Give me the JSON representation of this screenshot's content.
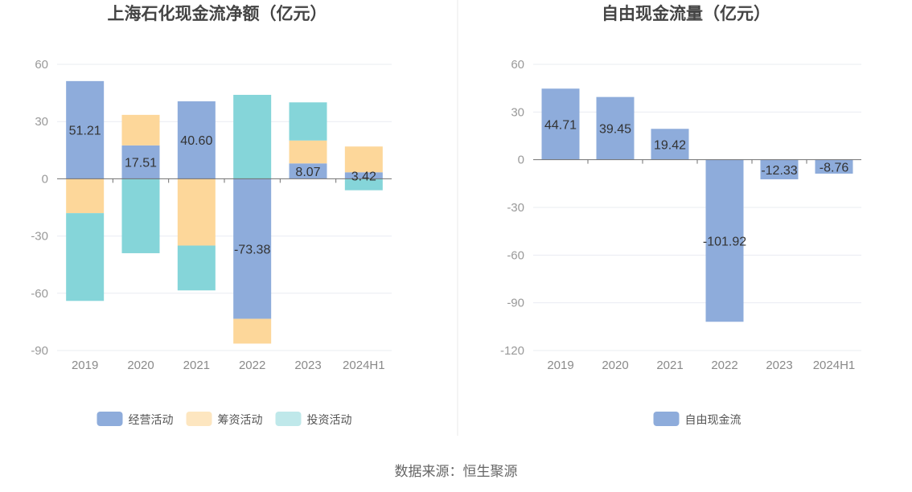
{
  "source": "数据来源：恒生聚源",
  "chart_data": [
    {
      "type": "bar",
      "stacked": true,
      "title": "上海石化现金流净额（亿元）",
      "categories": [
        "2019",
        "2020",
        "2021",
        "2022",
        "2023",
        "2024H1"
      ],
      "ylim": [
        -90,
        60
      ],
      "yticks": [
        60,
        30,
        0,
        -30,
        -60,
        -90
      ],
      "grid": true,
      "legend_position": "bottom",
      "series": [
        {
          "name": "经营活动",
          "color": "#8eacdb",
          "values": [
            51.21,
            17.51,
            40.6,
            -73.38,
            8.07,
            3.42
          ],
          "labels": [
            "51.21",
            "17.51",
            "40.60",
            "-73.38",
            "8.07",
            "3.42"
          ]
        },
        {
          "name": "筹资活动",
          "color": "#fdd79a",
          "values": [
            -18.0,
            16.0,
            -35.0,
            -13.0,
            12.0,
            13.5
          ]
        },
        {
          "name": "投资活动",
          "color": "#85d5d9",
          "values": [
            -46.0,
            -39.0,
            -23.5,
            44.0,
            20.0,
            -6.0
          ]
        }
      ]
    },
    {
      "type": "bar",
      "title": "自由现金流量（亿元）",
      "categories": [
        "2019",
        "2020",
        "2021",
        "2022",
        "2023",
        "2024H1"
      ],
      "ylim": [
        -120,
        60
      ],
      "yticks": [
        60,
        30,
        0,
        -30,
        -60,
        -90,
        -120
      ],
      "grid": true,
      "legend_position": "bottom",
      "series": [
        {
          "name": "自由现金流",
          "color": "#8eacdb",
          "values": [
            44.71,
            39.45,
            19.42,
            -101.92,
            -12.33,
            -8.76
          ],
          "labels": [
            "44.71",
            "39.45",
            "19.42",
            "-101.92",
            "-12.33",
            "-8.76"
          ]
        }
      ]
    }
  ]
}
